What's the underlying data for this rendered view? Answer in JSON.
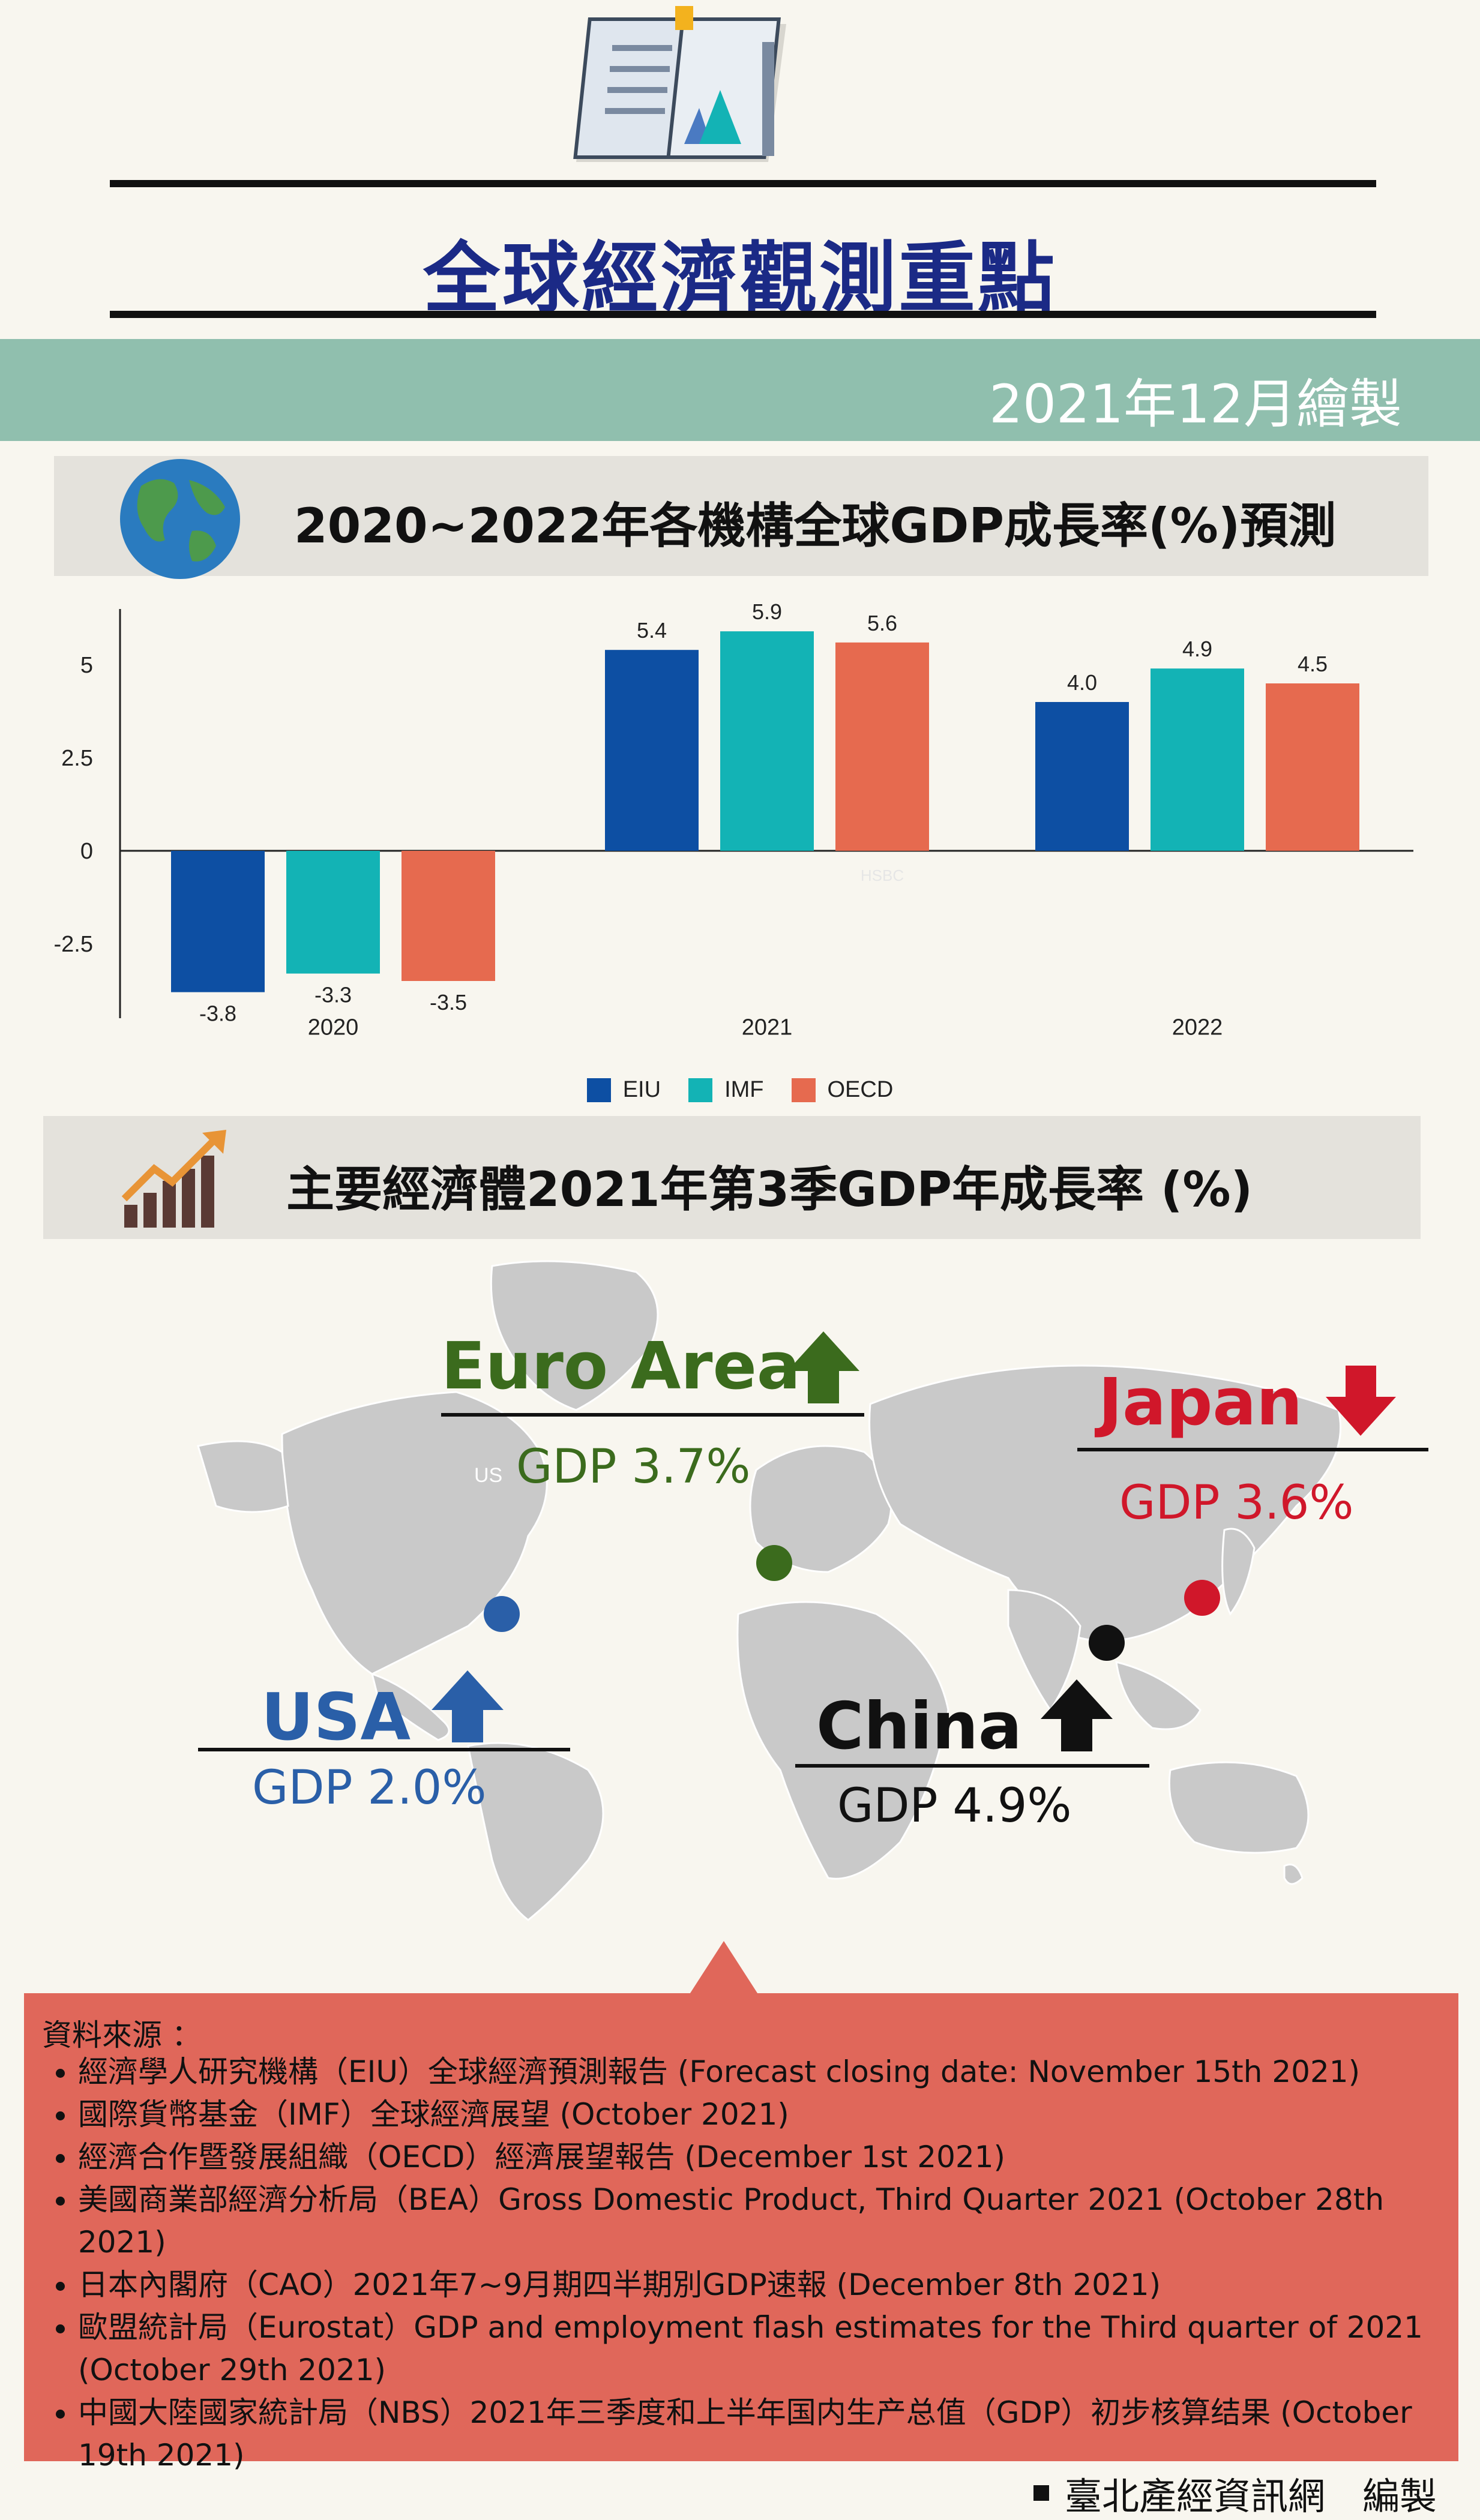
{
  "header": {
    "title": "全球經濟觀測重點",
    "date": "2021年12月繪製"
  },
  "section1": {
    "title": "2020~2022年各機構全球GDP成長率(%)預測",
    "icon": "globe-icon"
  },
  "chart_data": {
    "type": "bar",
    "categories": [
      "2020",
      "2021",
      "2022"
    ],
    "series": [
      {
        "name": "EIU",
        "values": [
          -3.8,
          5.4,
          4.0
        ],
        "color": "#0d4fa3"
      },
      {
        "name": "IMF",
        "values": [
          -3.3,
          5.9,
          4.9
        ],
        "color": "#13b3b5"
      },
      {
        "name": "OECD",
        "values": [
          -3.5,
          5.6,
          4.5
        ],
        "color": "#e66a4f"
      }
    ],
    "value_labels": [
      [
        "-3.8",
        "5.4",
        "4.0"
      ],
      [
        "-3.3",
        "5.9",
        "4.9"
      ],
      [
        "-3.5",
        "5.6",
        "4.5"
      ]
    ],
    "yticks": [
      "5",
      "2.5",
      "0",
      "-2.5"
    ],
    "ytick_values": [
      5,
      2.5,
      0,
      -2.5
    ],
    "ylim": [
      -4.5,
      6.5
    ],
    "legend_position": "bottom",
    "grid": false,
    "title": "",
    "xlabel": "",
    "ylabel": "",
    "watermark": "HSBC"
  },
  "section2": {
    "title": "主要經濟體2021年第3季GDP年成長率 (%)",
    "icon": "growth-chart-icon"
  },
  "economies": [
    {
      "name": "Euro Area",
      "gdp": "GDP 3.7%",
      "direction": "up",
      "color": "#3b6b1d"
    },
    {
      "name": "Japan",
      "gdp": "GDP 3.6%",
      "direction": "down",
      "color": "#d0172a"
    },
    {
      "name": "USA",
      "gdp": "GDP 2.0%",
      "direction": "up",
      "color": "#2a5fa8"
    },
    {
      "name": "China",
      "gdp": "GDP 4.9%",
      "direction": "up",
      "color": "#111111"
    }
  ],
  "map_label_us": "US",
  "sources": {
    "heading": "資料來源 ：",
    "items": [
      "經濟學人研究機構（EIU）全球經濟預測報告 (Forecast closing date: November 15th 2021)",
      "國際貨幣基金（IMF）全球經濟展望 (October 2021)",
      "經濟合作暨發展組織（OECD）經濟展望報告 (December 1st 2021)",
      "美國商業部經濟分析局（BEA）Gross Domestic Product, Third Quarter 2021 (October 28th 2021)",
      "日本內閣府（CAO）2021年7~9月期四半期別GDP速報 (December 8th 2021)",
      "歐盟統計局（Eurostat）GDP and employment flash estimates for the Third quarter of 2021 (October 29th 2021)",
      "中國大陸國家統計局（NBS）2021年三季度和上半年国内生产总值（GDP）初步核算结果 (October 19th 2021)"
    ]
  },
  "footer": "臺北產經資訊網　編製"
}
